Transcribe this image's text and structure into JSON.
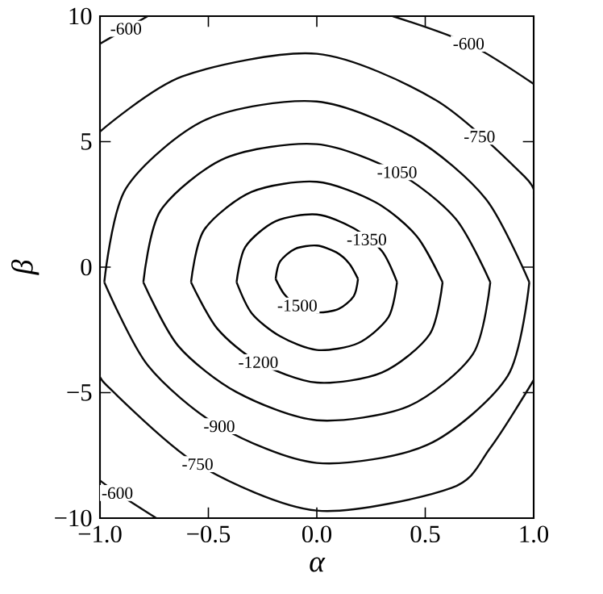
{
  "chart_data": {
    "type": "line",
    "xlabel": "α",
    "ylabel": "β",
    "xlim": [
      -1,
      1
    ],
    "ylim": [
      -10,
      10
    ],
    "xticks": [
      {
        "value": -1,
        "label": "−1.0"
      },
      {
        "value": -0.5,
        "label": "−0.5"
      },
      {
        "value": 0,
        "label": "0.0"
      },
      {
        "value": 0.5,
        "label": "0.5"
      },
      {
        "value": 1,
        "label": "1.0"
      }
    ],
    "yticks": [
      {
        "value": -10,
        "label": "−10"
      },
      {
        "value": -5,
        "label": "−5"
      },
      {
        "value": 0,
        "label": "0"
      },
      {
        "value": 5,
        "label": "5"
      },
      {
        "value": 10,
        "label": "10"
      }
    ],
    "series": [
      {
        "color": "#000000",
        "x": [
          -0.19,
          -0.17,
          -0.1,
          0,
          0.09,
          0.15,
          0.19
        ],
        "values": [
          -0.47,
          0.22,
          0.73,
          0.86,
          0.59,
          0.14,
          -0.47
        ]
      },
      {
        "color": "#010101",
        "x": [
          -0.19,
          -0.15,
          -0.09,
          0,
          0.1,
          0.17,
          0.19
        ],
        "values": [
          -0.47,
          -1.08,
          -1.53,
          -1.8,
          -1.67,
          -1.16,
          -0.47
        ]
      },
      {
        "color": "#020202",
        "x": [
          -0.37,
          -0.33,
          -0.19,
          0,
          0.17,
          0.3,
          0.37
        ],
        "values": [
          -0.6,
          0.8,
          1.83,
          2.1,
          1.55,
          0.64,
          -0.6
        ]
      },
      {
        "color": "#030303",
        "x": [
          -0.37,
          -0.3,
          -0.17,
          0,
          0.19,
          0.33,
          0.37
        ],
        "values": [
          -0.6,
          -1.84,
          -2.75,
          -3.3,
          -3.03,
          -2.0,
          -0.6
        ]
      },
      {
        "color": "#040404",
        "x": [
          -0.58,
          -0.52,
          -0.3,
          0,
          0.27,
          0.46,
          0.58
        ],
        "values": [
          -0.6,
          1.48,
          3.0,
          3.4,
          2.59,
          1.24,
          -0.6
        ]
      },
      {
        "color": "#050505",
        "x": [
          -0.58,
          -0.46,
          -0.27,
          0,
          0.3,
          0.52,
          0.58
        ],
        "values": [
          -0.6,
          -2.44,
          -3.79,
          -4.6,
          -4.2,
          -2.68,
          -0.6
        ]
      },
      {
        "color": "#060606",
        "x": [
          -0.8,
          -0.72,
          -0.42,
          0,
          0.37,
          0.64,
          0.8
        ],
        "values": [
          -0.6,
          2.26,
          4.35,
          4.9,
          3.78,
          1.93,
          -0.6
        ]
      },
      {
        "color": "#070707",
        "x": [
          -0.8,
          -0.64,
          -0.37,
          0,
          0.42,
          0.72,
          0.8
        ],
        "values": [
          -0.6,
          -3.13,
          -4.98,
          -6.1,
          -5.55,
          -3.46,
          -0.6
        ]
      },
      {
        "color": "#080808",
        "x": [
          -0.98,
          -0.88,
          -0.51,
          0,
          0.45,
          0.78,
          0.98
        ],
        "values": [
          -0.6,
          3.14,
          5.88,
          6.6,
          5.14,
          2.71,
          -0.6
        ]
      },
      {
        "color": "#090909",
        "x": [
          -0.98,
          -0.78,
          -0.45,
          0,
          0.51,
          0.88,
          0.98
        ],
        "values": [
          -0.6,
          -3.91,
          -6.34,
          -7.8,
          -7.08,
          -4.34,
          -0.6
        ]
      },
      {
        "color": "#0a0a0a",
        "x": [
          -1,
          -0.62,
          0,
          0.55,
          0.96,
          1
        ],
        "values": [
          5.4,
          7.6,
          8.5,
          6.65,
          3.59,
          2.8
        ]
      },
      {
        "color": "#0b0b0b",
        "x": [
          -1,
          -0.96,
          -0.55,
          0,
          0.62,
          0.8,
          1
        ],
        "values": [
          -4.2,
          -4.79,
          -7.85,
          -9.7,
          -8.8,
          -7.2,
          -4.5
        ]
      },
      {
        "color": "#0c0c0c",
        "x": [
          -1,
          -0.88,
          -0.78
        ],
        "values": [
          8.9,
          9.5,
          10
        ]
      },
      {
        "color": "#0d0d0d",
        "x": [
          0.35,
          0.7,
          1
        ],
        "values": [
          10,
          8.9,
          7.3
        ]
      },
      {
        "color": "#0e0e0e",
        "x": [
          -1,
          -0.92,
          -0.74
        ],
        "values": [
          -8.5,
          -9.0,
          -10
        ]
      }
    ],
    "annotations": [
      {
        "text": "-600",
        "x": -0.88,
        "y": 9.5
      },
      {
        "text": "-600",
        "x": 0.7,
        "y": 8.9
      },
      {
        "text": "-750",
        "x": 0.75,
        "y": 5.2
      },
      {
        "text": "-1050",
        "x": 0.37,
        "y": 3.78
      },
      {
        "text": "-1350",
        "x": 0.23,
        "y": 1.1
      },
      {
        "text": "-1500",
        "x": -0.09,
        "y": -1.53
      },
      {
        "text": "-1200",
        "x": -0.27,
        "y": -3.79
      },
      {
        "text": "-900",
        "x": -0.45,
        "y": -6.34
      },
      {
        "text": "-750",
        "x": -0.55,
        "y": -7.85
      },
      {
        "text": "-600",
        "x": -0.92,
        "y": -9.0
      }
    ]
  }
}
